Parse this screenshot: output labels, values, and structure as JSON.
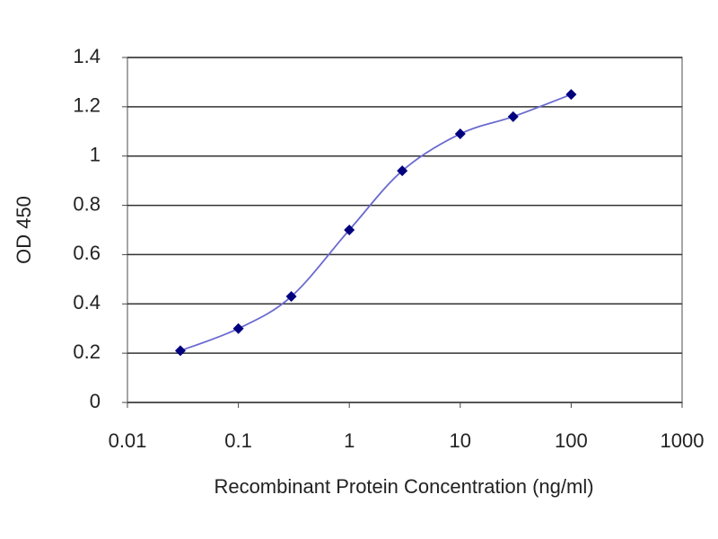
{
  "chart_data": {
    "type": "line",
    "xlabel": "Recombinant Protein Concentration (ng/ml)",
    "ylabel": "OD 450",
    "x": [
      0.03,
      0.1,
      0.3,
      1,
      3,
      10,
      30,
      100
    ],
    "series": [
      {
        "color": "#00007f",
        "line_color": "#6a6ad0",
        "values": [
          0.21,
          0.3,
          0.43,
          0.7,
          0.94,
          1.09,
          1.16,
          1.25
        ]
      }
    ],
    "xscale": "log",
    "xlim": [
      0.01,
      1000
    ],
    "xticks": [
      0.01,
      0.1,
      1,
      10,
      100,
      1000
    ],
    "ylim": [
      0,
      1.4
    ],
    "yticks": [
      0,
      0.2,
      0.4,
      0.6,
      0.8,
      1,
      1.2,
      1.4
    ],
    "grid": true
  }
}
